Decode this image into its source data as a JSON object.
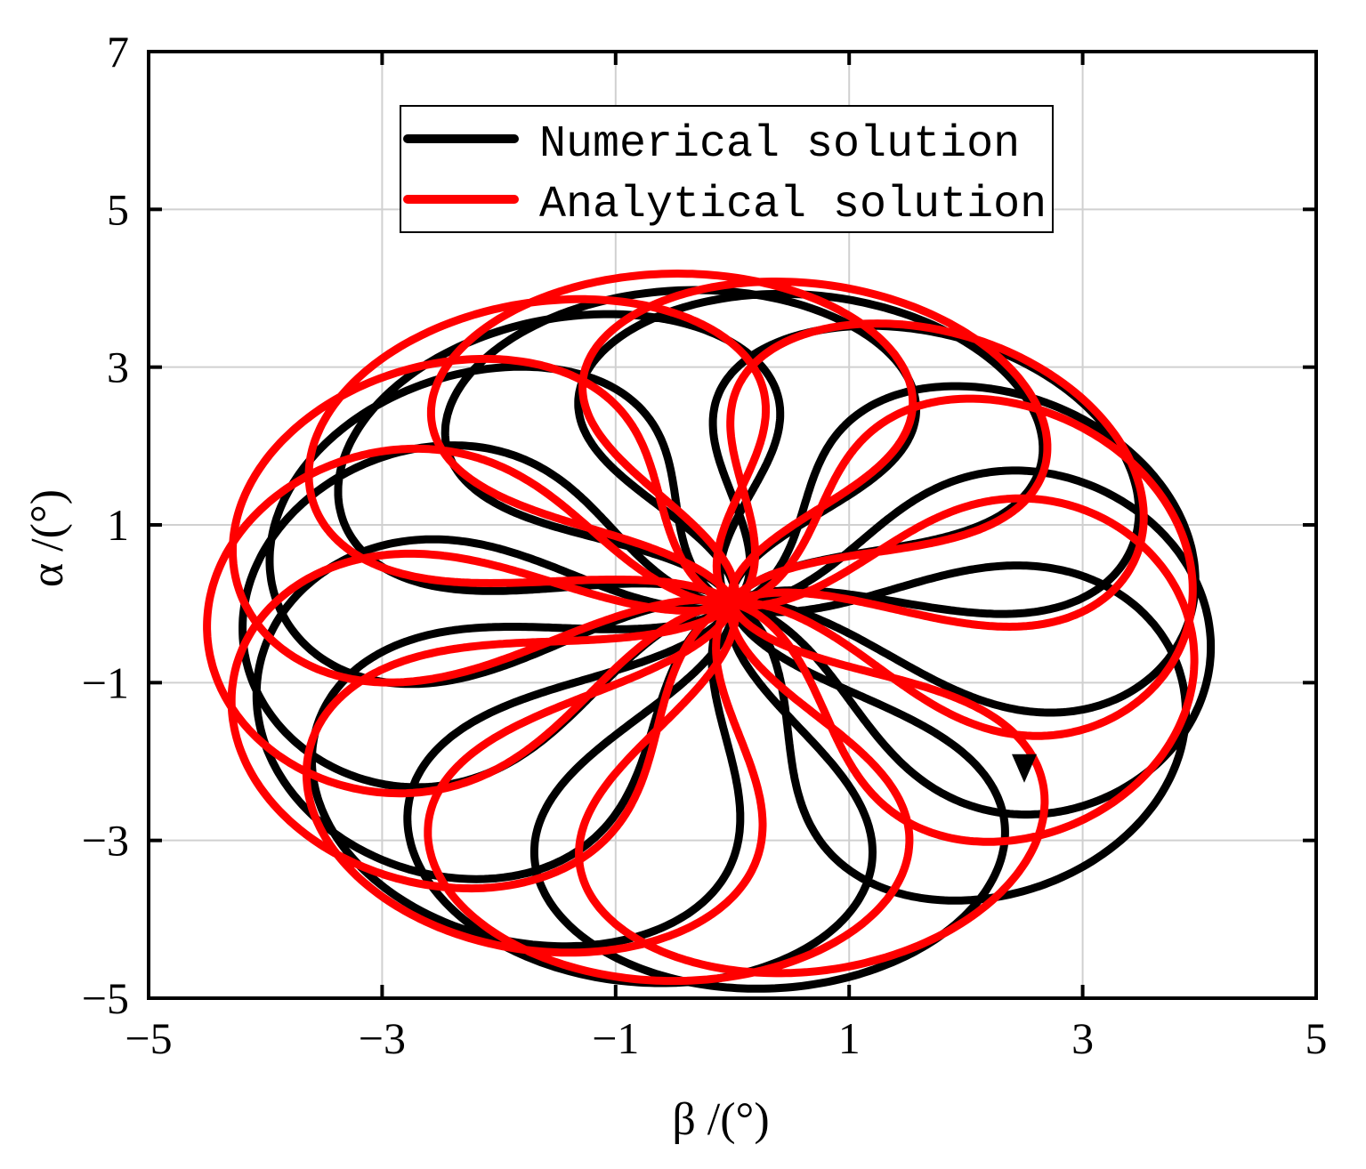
{
  "chart_data": {
    "type": "line",
    "xlabel": "β /(°)",
    "ylabel": "α /(°)",
    "xlim": [
      -5,
      5
    ],
    "ylim": [
      -5,
      7
    ],
    "x_ticks": [
      -5,
      -3,
      -1,
      1,
      3,
      5
    ],
    "y_ticks": [
      -5,
      -3,
      -1,
      1,
      3,
      5,
      7
    ],
    "x_tick_labels": [
      "−5",
      "−3",
      "−1",
      "1",
      "3",
      "5"
    ],
    "y_tick_labels": [
      "−5",
      "−3",
      "−1",
      "1",
      "3",
      "5",
      "7"
    ],
    "grid": true,
    "legend_position": "top-center",
    "series": [
      {
        "name": "Numerical solution",
        "color": "#000000",
        "curve": "rosette",
        "petals": 13,
        "start": [
          2.5,
          -2.2
        ],
        "center": [
          0.0,
          0.0
        ],
        "extent": {
          "beta": [
            -4.2,
            4.1
          ],
          "alpha": [
            -4.9,
            4.0
          ]
        }
      },
      {
        "name": "Analytical solution",
        "color": "#ff0000",
        "curve": "rosette",
        "petals": 12,
        "start": [
          2.0,
          -1.0
        ],
        "center": [
          0.0,
          0.0
        ],
        "extent": {
          "beta": [
            -4.5,
            4.0
          ],
          "alpha": [
            -4.8,
            4.2
          ]
        }
      }
    ]
  }
}
